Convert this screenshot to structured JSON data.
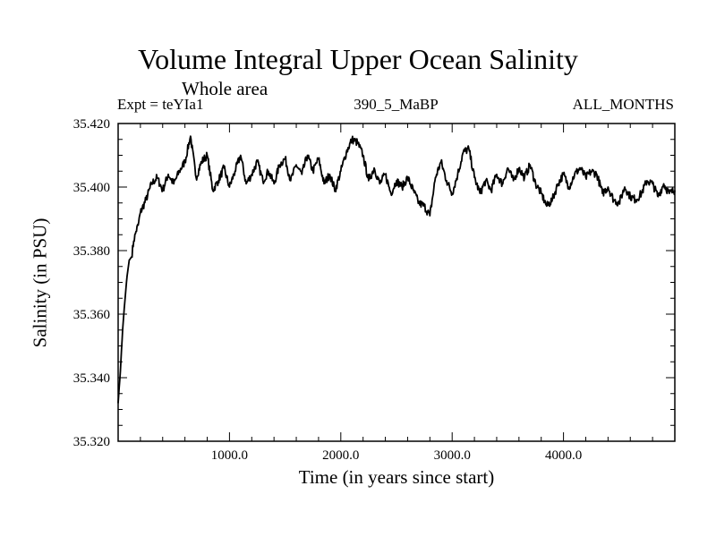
{
  "chart_data": {
    "type": "line",
    "title": "Volume Integral Upper Ocean Salinity",
    "subtitle": "Whole area",
    "experiment_label": "Expt = teYIa1",
    "center_label": "390_5_MaBP",
    "right_label": "ALL_MONTHS",
    "xlabel": "Time (in years since start)",
    "ylabel": "Salinity (in PSU)",
    "xlim": [
      0,
      5000
    ],
    "ylim": [
      35.32,
      35.42
    ],
    "x_ticks": [
      1000,
      2000,
      3000,
      4000
    ],
    "x_tick_labels": [
      "1000.0",
      "2000.0",
      "3000.0",
      "4000.0"
    ],
    "y_ticks": [
      35.32,
      35.34,
      35.36,
      35.38,
      35.4,
      35.42
    ],
    "y_tick_labels": [
      "35.320",
      "35.340",
      "35.360",
      "35.380",
      "35.400",
      "35.420"
    ],
    "grid": false,
    "series": [
      {
        "name": "Salinity",
        "color": "#000000",
        "x": [
          0,
          20,
          40,
          60,
          80,
          100,
          120,
          140,
          160,
          180,
          200,
          250,
          300,
          350,
          400,
          450,
          500,
          550,
          600,
          650,
          700,
          750,
          800,
          850,
          900,
          950,
          1000,
          1050,
          1100,
          1150,
          1200,
          1250,
          1300,
          1350,
          1400,
          1450,
          1500,
          1550,
          1600,
          1650,
          1700,
          1750,
          1800,
          1850,
          1900,
          1950,
          2000,
          2050,
          2100,
          2150,
          2200,
          2250,
          2300,
          2350,
          2400,
          2450,
          2500,
          2550,
          2600,
          2650,
          2700,
          2750,
          2800,
          2850,
          2900,
          2950,
          3000,
          3050,
          3100,
          3150,
          3200,
          3250,
          3300,
          3350,
          3400,
          3450,
          3500,
          3550,
          3600,
          3650,
          3700,
          3750,
          3800,
          3850,
          3900,
          3950,
          4000,
          4050,
          4100,
          4150,
          4200,
          4250,
          4300,
          4350,
          4400,
          4450,
          4500,
          4550,
          4600,
          4650,
          4700,
          4750,
          4800,
          4850,
          4900,
          4950,
          5000
        ],
        "values": [
          35.332,
          35.342,
          35.355,
          35.364,
          35.372,
          35.377,
          35.378,
          35.383,
          35.386,
          35.388,
          35.392,
          35.396,
          35.401,
          35.403,
          35.399,
          35.404,
          35.401,
          35.405,
          35.408,
          35.416,
          35.403,
          35.408,
          35.41,
          35.399,
          35.402,
          35.406,
          35.4,
          35.405,
          35.41,
          35.401,
          35.404,
          35.408,
          35.402,
          35.405,
          35.401,
          35.407,
          35.409,
          35.402,
          35.407,
          35.404,
          35.41,
          35.405,
          35.409,
          35.401,
          35.404,
          35.399,
          35.405,
          35.411,
          35.415,
          35.414,
          35.41,
          35.402,
          35.406,
          35.401,
          35.404,
          35.398,
          35.402,
          35.4,
          35.403,
          35.399,
          35.395,
          35.394,
          35.391,
          35.403,
          35.408,
          35.402,
          35.398,
          35.404,
          35.411,
          35.412,
          35.403,
          35.398,
          35.402,
          35.399,
          35.404,
          35.401,
          35.406,
          35.402,
          35.406,
          35.403,
          35.407,
          35.401,
          35.398,
          35.394,
          35.396,
          35.401,
          35.404,
          35.4,
          35.404,
          35.406,
          35.403,
          35.405,
          35.404,
          35.398,
          35.4,
          35.396,
          35.395,
          35.4,
          35.397,
          35.396,
          35.398,
          35.402,
          35.401,
          35.397,
          35.401,
          35.398,
          35.399
        ]
      }
    ]
  }
}
